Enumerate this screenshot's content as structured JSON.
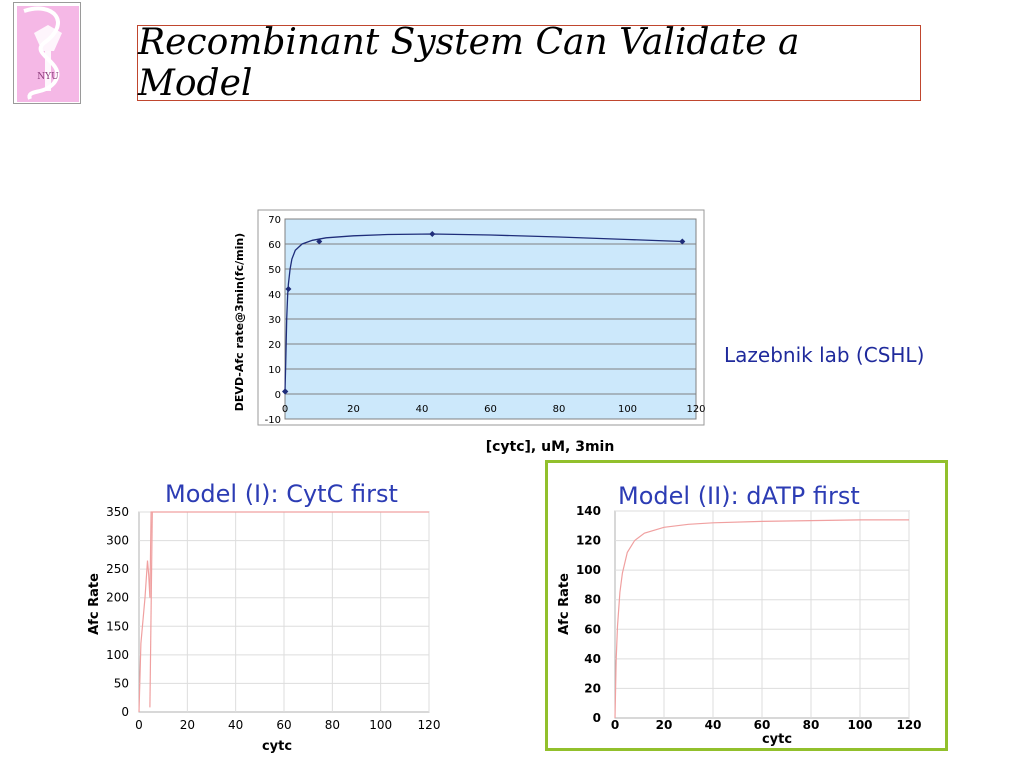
{
  "slide": {
    "title": "Recombinant System Can Validate a Model",
    "lab_credit": "Lazebnik lab (CSHL)",
    "logo_icon": "nyu-torch-logo"
  },
  "chart_data": [
    {
      "type": "scatter",
      "title": "",
      "xlabel": "[cytc], uM, 3min",
      "ylabel": "DEVD-Afc rate@3min(fc/min)",
      "xlim": [
        0,
        120
      ],
      "ylim": [
        -10,
        70
      ],
      "x_ticks": [
        0,
        20,
        40,
        60,
        80,
        100,
        120
      ],
      "y_ticks": [
        -10,
        0,
        10,
        20,
        30,
        40,
        50,
        60,
        70
      ],
      "grid": true,
      "plot_bg": "#cce8fb",
      "line_color": "#1f2d7a",
      "series": [
        {
          "x": [
            0,
            0.1,
            1,
            10,
            43,
            116
          ],
          "y": [
            1,
            1,
            42,
            61,
            64,
            61
          ]
        }
      ],
      "curve": {
        "x": [
          0,
          0.2,
          0.5,
          0.8,
          1,
          1.5,
          2,
          3,
          5,
          8,
          12,
          20,
          30,
          43,
          60,
          80,
          100,
          116
        ],
        "y": [
          1,
          12,
          30,
          40,
          44,
          50,
          54,
          57.5,
          60,
          61.5,
          62.5,
          63.3,
          63.8,
          64,
          63.6,
          62.8,
          61.8,
          61
        ]
      }
    },
    {
      "type": "line",
      "title": "Model (I): CytC first",
      "xlabel": "cytc",
      "ylabel": "Afc Rate",
      "xlim": [
        0,
        120
      ],
      "ylim": [
        0,
        350
      ],
      "x_ticks": [
        0,
        20,
        40,
        60,
        80,
        100,
        120
      ],
      "y_ticks": [
        0,
        50,
        100,
        150,
        200,
        250,
        300,
        350
      ],
      "grid": true,
      "line_color": "#f0a0a0",
      "series": [
        {
          "x": [
            0,
            0.8,
            2.5,
            3.5,
            4,
            4.5,
            5,
            6,
            8,
            12,
            20,
            40,
            80,
            120
          ],
          "y": [
            0,
            120,
            200,
            265,
            240,
            200,
            350,
            350,
            350,
            350,
            350,
            350,
            350,
            350
          ]
        }
      ],
      "spike": {
        "x": [
          4.5,
          5.5
        ],
        "y": [
          8,
          350
        ]
      }
    },
    {
      "type": "line",
      "title": "Model (II): dATP first",
      "xlabel": "cytc",
      "ylabel": "Afc Rate",
      "xlim": [
        0,
        120
      ],
      "ylim": [
        0,
        140
      ],
      "x_ticks": [
        0,
        20,
        40,
        60,
        80,
        100,
        120
      ],
      "y_ticks": [
        0,
        20,
        40,
        60,
        80,
        100,
        120,
        140
      ],
      "grid": true,
      "line_color": "#f0a0a0",
      "series": [
        {
          "x": [
            0,
            0.5,
            1,
            2,
            3,
            5,
            8,
            12,
            20,
            30,
            40,
            60,
            80,
            100,
            120
          ],
          "y": [
            0,
            40,
            62,
            85,
            98,
            112,
            120,
            125,
            129,
            131,
            132,
            133,
            133.5,
            134,
            134
          ]
        }
      ]
    }
  ]
}
